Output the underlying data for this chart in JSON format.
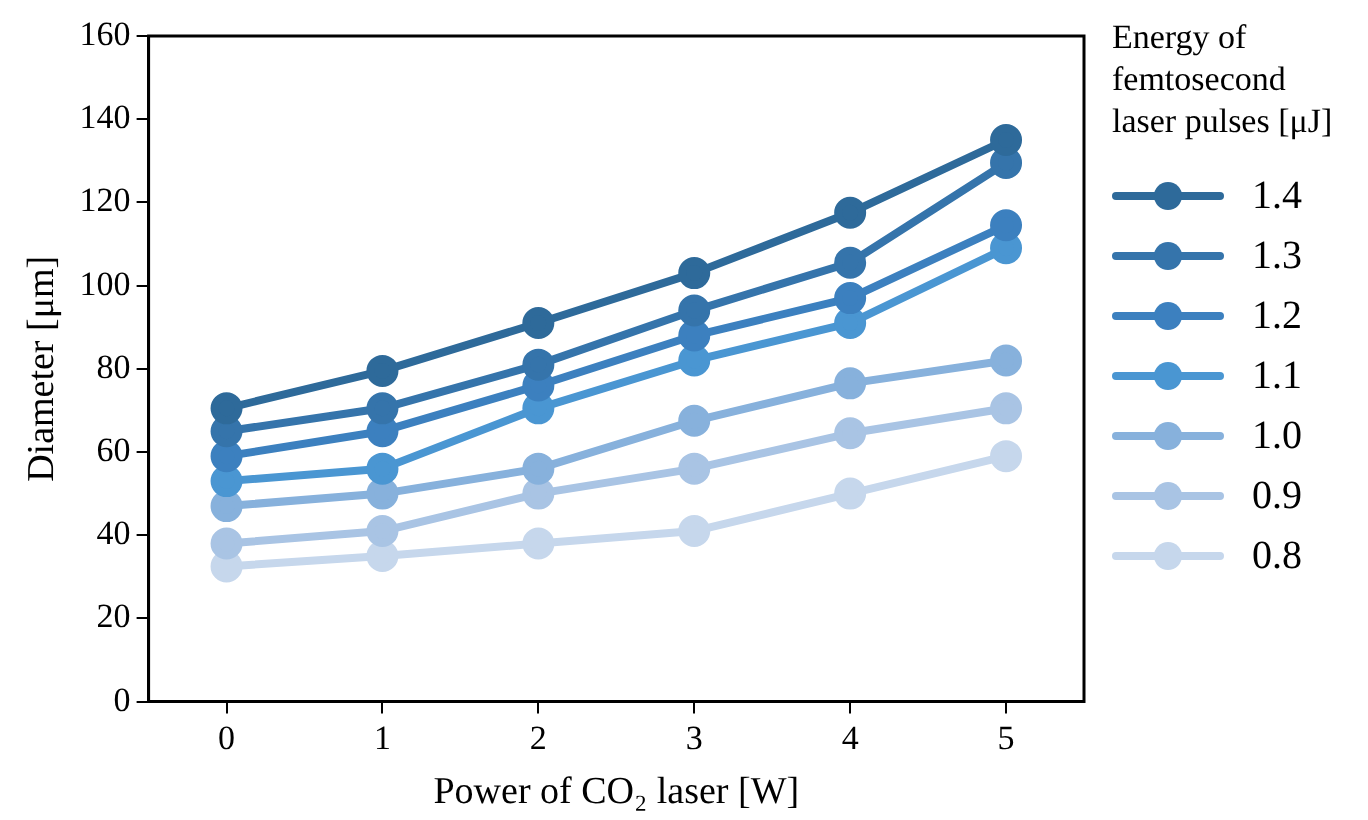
{
  "chart_data": {
    "type": "line",
    "xlabel": "Power of CO₂ laser [W]",
    "ylabel": "Diameter [μm]",
    "legend_title": "Energy of femtosecond laser pulses [μJ]",
    "categories": [
      "0",
      "1",
      "2",
      "3",
      "4",
      "5"
    ],
    "ylim": [
      0,
      160
    ],
    "yticks": [
      0,
      20,
      40,
      60,
      80,
      100,
      120,
      140,
      160
    ],
    "grid": false,
    "legend": "right",
    "marker": "circle",
    "line_style": "solid",
    "series": [
      {
        "name": "1.4",
        "color": "#2e6a9a",
        "values": [
          70.5,
          79.5,
          91,
          103,
          117.5,
          135
        ]
      },
      {
        "name": "1.3",
        "color": "#3574ab",
        "values": [
          65,
          70.5,
          81,
          94,
          105.5,
          129.5
        ]
      },
      {
        "name": "1.2",
        "color": "#3c80bf",
        "values": [
          59,
          65,
          76,
          88,
          97,
          114.5
        ]
      },
      {
        "name": "1.1",
        "color": "#4a96d2",
        "values": [
          53,
          56,
          70.5,
          82,
          91,
          109
        ]
      },
      {
        "name": "1.0",
        "color": "#87b1dc",
        "values": [
          47,
          50,
          56,
          67.5,
          76.5,
          82
        ]
      },
      {
        "name": "0.9",
        "color": "#a9c4e4",
        "values": [
          38,
          41,
          50,
          56,
          64.5,
          70.5
        ]
      },
      {
        "name": "0.8",
        "color": "#c6d7ec",
        "values": [
          32.5,
          35,
          38,
          41,
          50,
          59
        ]
      }
    ]
  }
}
